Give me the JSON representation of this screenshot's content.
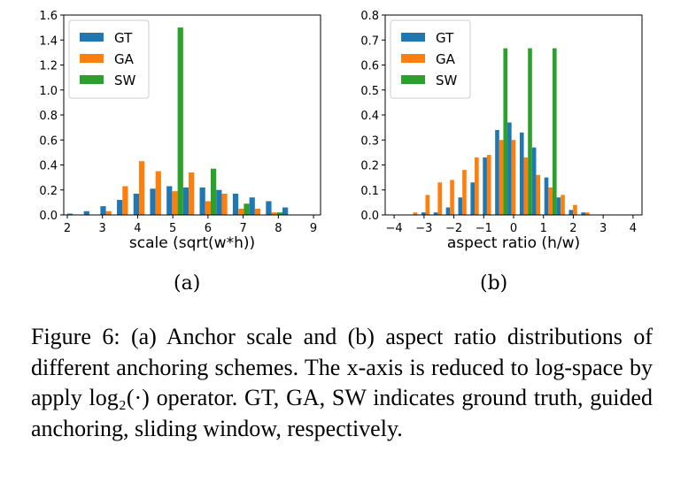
{
  "colors": {
    "GT": "#1f77b4",
    "GA": "#ff7f0e",
    "SW": "#2ca02c"
  },
  "chart_data": [
    {
      "type": "bar",
      "panel_label": "(a)",
      "xlabel": "scale (sqrt(w*h))",
      "ylabel": "",
      "xlim": [
        1.9,
        9.2
      ],
      "ylim": [
        0.0,
        1.6
      ],
      "xticks": [
        "2",
        "3",
        "4",
        "5",
        "6",
        "7",
        "8",
        "9"
      ],
      "xtick_values": [
        2,
        3,
        4,
        5,
        6,
        7,
        8,
        9
      ],
      "yticks": [
        "0.0",
        "0.2",
        "0.4",
        "0.6",
        "0.8",
        "1.0",
        "1.2",
        "1.4",
        "1.6"
      ],
      "ytick_values": [
        0.0,
        0.2,
        0.4,
        0.6,
        0.8,
        1.0,
        1.2,
        1.4,
        1.6
      ],
      "legend_position": "top-left",
      "bin_width": 0.4706,
      "bin_starts": [
        2.0,
        2.4706,
        2.9412,
        3.4118,
        3.8824,
        4.3529,
        4.8235,
        5.2941,
        5.7647,
        6.2353,
        6.7059,
        7.1765,
        7.6471,
        8.1176,
        8.5882
      ],
      "series": [
        {
          "name": "GT",
          "values": [
            0.01,
            0.03,
            0.07,
            0.12,
            0.17,
            0.21,
            0.23,
            0.22,
            0.22,
            0.2,
            0.17,
            0.14,
            0.11,
            0.06,
            0.0
          ]
        },
        {
          "name": "GA",
          "values": [
            0.0,
            0.0,
            0.03,
            0.23,
            0.43,
            0.35,
            0.19,
            0.34,
            0.11,
            0.17,
            0.05,
            0.05,
            0.02,
            0.0,
            0.0
          ]
        },
        {
          "name": "SW",
          "values": [
            0.0,
            0.0,
            0.0,
            0.0,
            0.0,
            0.0,
            1.5,
            0.0,
            0.37,
            0.0,
            0.09,
            0.0,
            0.02,
            0.0,
            0.0
          ]
        }
      ]
    },
    {
      "type": "bar",
      "panel_label": "(b)",
      "xlabel": "aspect ratio (h/w)",
      "ylabel": "",
      "xlim": [
        -4.3,
        4.3
      ],
      "ylim": [
        0.0,
        0.8
      ],
      "xticks": [
        "−4",
        "−3",
        "−2",
        "−1",
        "0",
        "1",
        "2",
        "3",
        "4"
      ],
      "xtick_values": [
        -4,
        -3,
        -2,
        -1,
        0,
        1,
        2,
        3,
        4
      ],
      "yticks": [
        "0.0",
        "0.1",
        "0.2",
        "0.3",
        "0.4",
        "0.5",
        "0.6",
        "0.7",
        "0.8"
      ],
      "ytick_values": [
        0.0,
        0.1,
        0.2,
        0.3,
        0.4,
        0.5,
        0.6,
        0.7,
        0.8
      ],
      "legend_position": "top-left",
      "bin_width": 0.4118,
      "bin_starts": [
        -3.5,
        -3.0882,
        -2.6765,
        -2.2647,
        -1.8529,
        -1.4412,
        -1.0294,
        -0.6176,
        -0.2059,
        0.2059,
        0.6176,
        1.0294,
        1.4412,
        1.8529,
        2.2647,
        2.6765,
        3.0882
      ],
      "series": [
        {
          "name": "GT",
          "values": [
            0.0,
            0.01,
            0.01,
            0.03,
            0.07,
            0.13,
            0.23,
            0.34,
            0.37,
            0.33,
            0.27,
            0.15,
            0.07,
            0.02,
            0.01,
            0.0,
            0.0
          ]
        },
        {
          "name": "GA",
          "values": [
            0.01,
            0.08,
            0.13,
            0.14,
            0.18,
            0.23,
            0.24,
            0.3,
            0.3,
            0.23,
            0.16,
            0.11,
            0.08,
            0.04,
            0.01,
            0.0,
            0.0
          ]
        },
        {
          "name": "SW",
          "values": [
            0.0,
            0.0,
            0.0,
            0.0,
            0.0,
            0.0,
            0.0,
            0.667,
            0.0,
            0.667,
            0.0,
            0.667,
            0.0,
            0.0,
            0.0,
            0.0,
            0.0
          ]
        }
      ]
    }
  ],
  "caption": {
    "text": "Figure 6: (a) Anchor scale and (b) aspect ratio distributions of different anchoring schemes. The x-axis is reduced to log-space by apply log₂(·) operator. GT, GA, SW indicates ground truth, guided anchoring, sliding window, respectively."
  }
}
